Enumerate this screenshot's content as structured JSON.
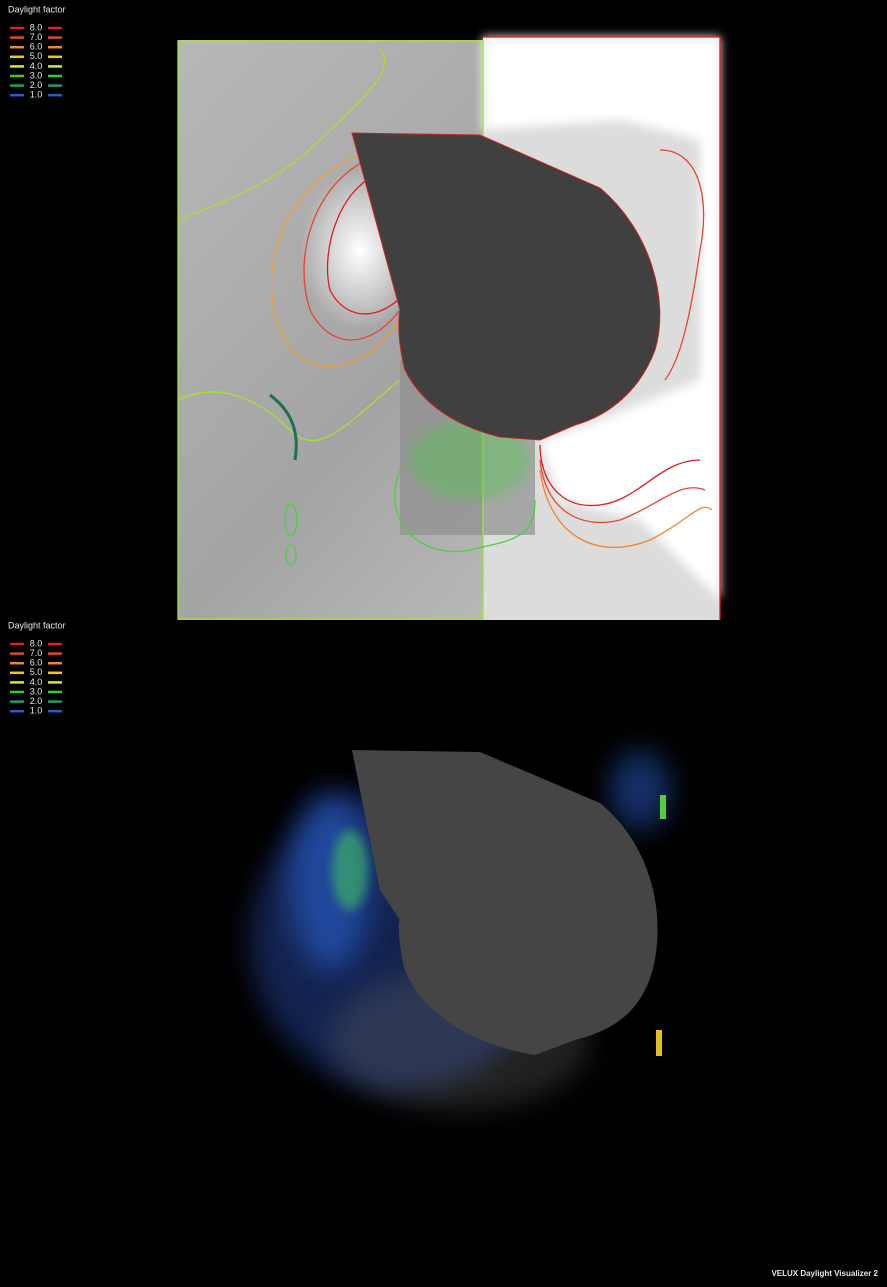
{
  "legends": [
    {
      "title": "Daylight factor",
      "levels": [
        {
          "label": "8.0",
          "color": "#e01c1c"
        },
        {
          "label": "7.0",
          "color": "#e8442c"
        },
        {
          "label": "6.0",
          "color": "#f0842c"
        },
        {
          "label": "5.0",
          "color": "#f0c420"
        },
        {
          "label": "4.0",
          "color": "#c8f028"
        },
        {
          "label": "3.0",
          "color": "#30d030"
        },
        {
          "label": "2.0",
          "color": "#20a060"
        },
        {
          "label": "1.0",
          "color": "#2060c8"
        }
      ]
    },
    {
      "title": "Daylight factor",
      "levels": [
        {
          "label": "8.0",
          "color": "#e01c1c"
        },
        {
          "label": "7.0",
          "color": "#e8442c"
        },
        {
          "label": "6.0",
          "color": "#f0842c"
        },
        {
          "label": "5.0",
          "color": "#f0c420"
        },
        {
          "label": "4.0",
          "color": "#c8f028"
        },
        {
          "label": "3.0",
          "color": "#30d030"
        },
        {
          "label": "2.0",
          "color": "#20a060"
        },
        {
          "label": "1.0",
          "color": "#2060c8"
        }
      ]
    }
  ],
  "footer": "VELUX Daylight Visualizer 2"
}
